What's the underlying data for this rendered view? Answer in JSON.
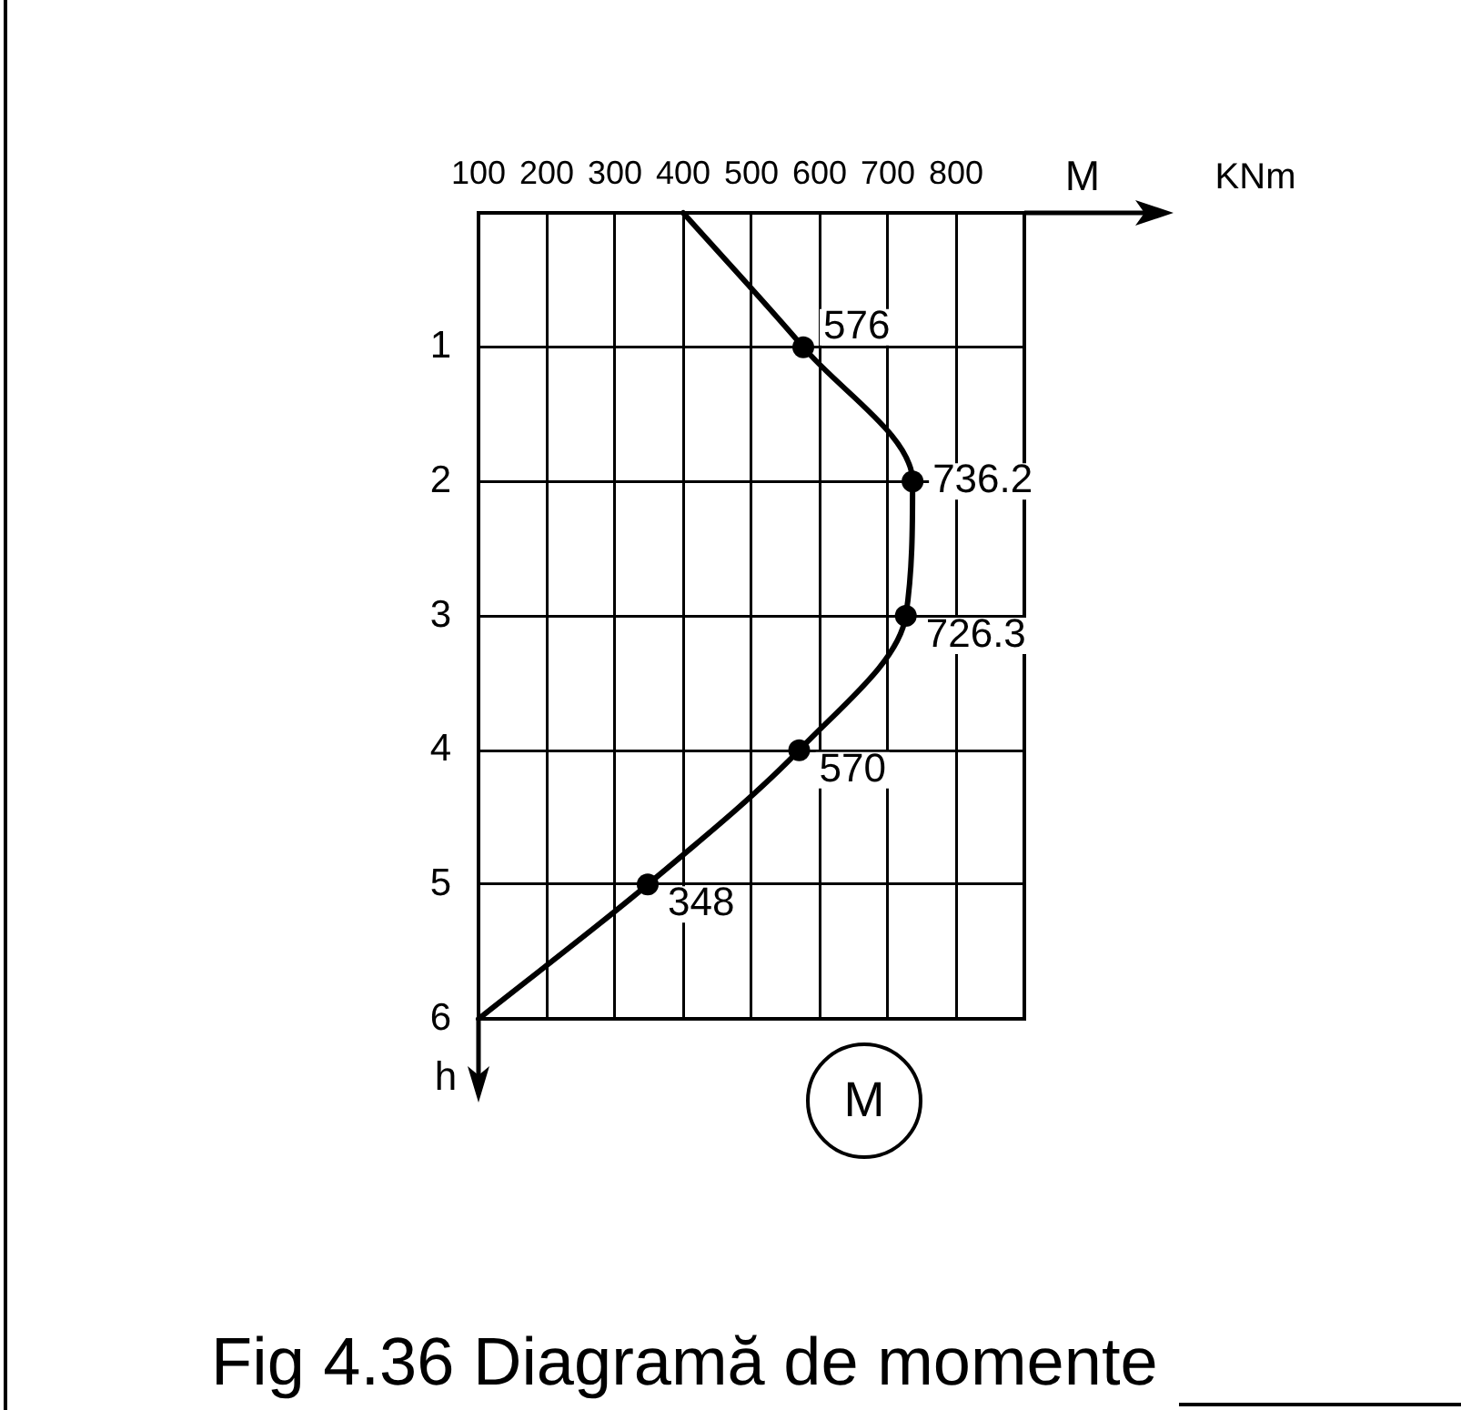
{
  "chart_data": {
    "type": "line",
    "orientation": "horizontal",
    "title": "Fig 4.36 Diagramă de momente",
    "xlabel": "M",
    "ylabel": "h",
    "annotations": [
      "KNm",
      "M"
    ],
    "x": [
      0,
      1,
      2,
      3,
      4,
      5,
      6
    ],
    "values": [
      400,
      576,
      736.2,
      726.3,
      570,
      348,
      100
    ],
    "value_labels": [
      null,
      "576",
      "736.2",
      "726.3",
      "570",
      "348",
      null
    ],
    "color": "#000000",
    "xlim": [
      100,
      900
    ],
    "xticks": [
      100,
      200,
      300,
      400,
      500,
      600,
      700,
      800
    ],
    "ylim": [
      6,
      0
    ],
    "yticks": [
      1,
      2,
      3,
      4,
      5,
      6
    ],
    "grid": true,
    "marker": "circle",
    "line_style": "solid"
  }
}
